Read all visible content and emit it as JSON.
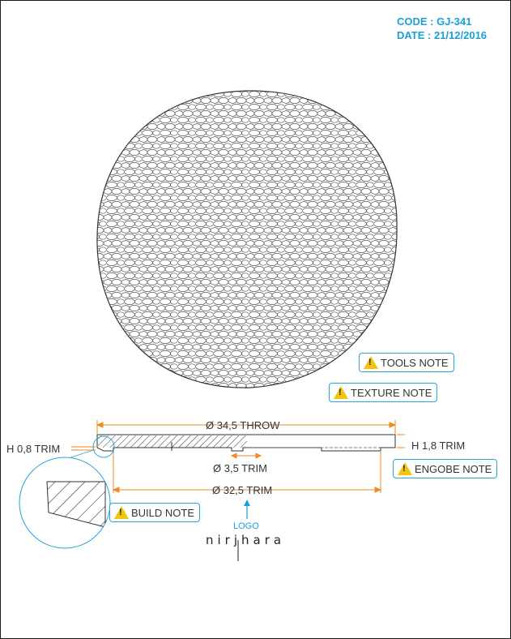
{
  "header": {
    "code": "CODE : GJ-341",
    "date": "DATE : 21/12/2016"
  },
  "notes": {
    "tools": "TOOLS NOTE",
    "texture": "TEXTURE NOTE",
    "engobe": "ENGOBE NOTE",
    "build": "BUILD NOTE"
  },
  "dimensions": {
    "throw_diameter": "Ø 34,5 THROW",
    "trim_diameter": "Ø 32,5 TRIM",
    "foot_diameter": "Ø 3,5 TRIM",
    "left_height": "H 0,8 TRIM",
    "right_height": "H 1,8 TRIM"
  },
  "logo_label": "LOGO",
  "brand": "nirjhara",
  "colors": {
    "accent": "#1a9fd6",
    "dimension": "#f08a24",
    "warning": "#f2c40a"
  }
}
